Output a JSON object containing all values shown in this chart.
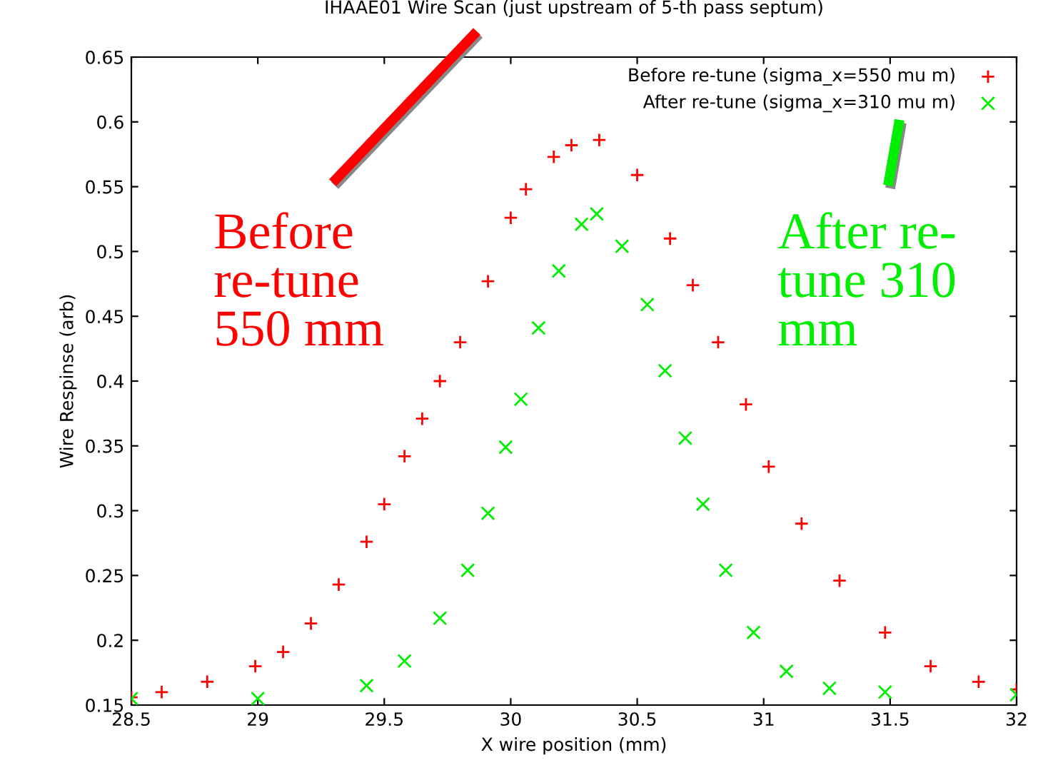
{
  "chart_data": {
    "type": "scatter",
    "title": "IHAAE01 Wire Scan (just upstream of 5-th pass septum)",
    "xlabel": "X wire position (mm)",
    "ylabel": "Wire Respinse (arb)",
    "xlim": [
      28.5,
      32
    ],
    "ylim": [
      0.15,
      0.65
    ],
    "xticks": [
      28.5,
      29,
      29.5,
      30,
      30.5,
      31,
      31.5,
      32
    ],
    "yticks": [
      0.15,
      0.2,
      0.25,
      0.3,
      0.35,
      0.4,
      0.45,
      0.5,
      0.55,
      0.6,
      0.65
    ],
    "grid": false,
    "legend": "top right",
    "annotations": [
      "Before\nre-tune\n550 mm",
      "After re-\ntune 310\nmm"
    ],
    "series": [
      {
        "name": "Before re-tune (sigma_x=550 mu m)",
        "color": "#ff0000",
        "marker": "plus",
        "x": [
          28.5,
          28.62,
          28.8,
          28.99,
          29.1,
          29.21,
          29.32,
          29.43,
          29.5,
          29.58,
          29.65,
          29.72,
          29.8,
          29.91,
          30.0,
          30.06,
          30.17,
          30.24,
          30.35,
          30.5,
          30.63,
          30.72,
          30.82,
          30.93,
          31.02,
          31.15,
          31.3,
          31.48,
          31.66,
          31.85,
          32.0
        ],
        "values": [
          0.156,
          0.16,
          0.168,
          0.18,
          0.191,
          0.213,
          0.243,
          0.276,
          0.305,
          0.342,
          0.371,
          0.4,
          0.43,
          0.477,
          0.526,
          0.548,
          0.573,
          0.582,
          0.586,
          0.559,
          0.51,
          0.474,
          0.43,
          0.382,
          0.334,
          0.29,
          0.246,
          0.206,
          0.18,
          0.168,
          0.162
        ]
      },
      {
        "name": "After re-tune (sigma_x=310 mu m)",
        "color": "#00ee00",
        "marker": "cross",
        "x": [
          28.5,
          29.0,
          29.43,
          29.58,
          29.72,
          29.83,
          29.91,
          29.98,
          30.04,
          30.11,
          30.19,
          30.28,
          30.34,
          30.44,
          30.54,
          30.61,
          30.69,
          30.76,
          30.85,
          30.96,
          31.09,
          31.26,
          31.48,
          32.0
        ],
        "values": [
          0.155,
          0.155,
          0.165,
          0.184,
          0.217,
          0.254,
          0.298,
          0.349,
          0.386,
          0.441,
          0.485,
          0.521,
          0.529,
          0.504,
          0.459,
          0.408,
          0.356,
          0.305,
          0.254,
          0.206,
          0.176,
          0.163,
          0.16,
          0.158
        ]
      }
    ]
  }
}
